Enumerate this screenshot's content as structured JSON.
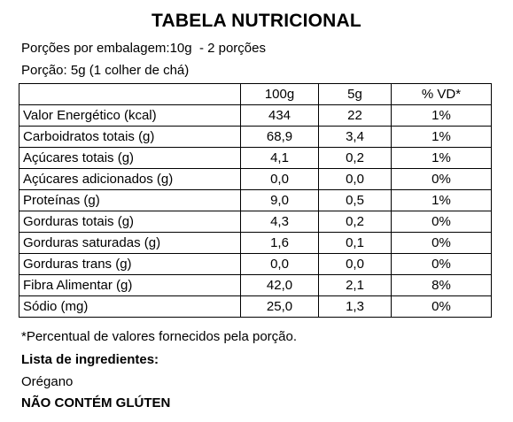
{
  "title": "TABELA NUTRICIONAL",
  "servings_per_package": "Porções por embalagem:10g  - 2 porções",
  "serving_size": "Porção: 5g (1 colher de chá)",
  "table": {
    "headers": [
      "",
      "100g",
      "5g",
      "% VD*"
    ],
    "rows": [
      {
        "name": "Valor Energético (kcal)",
        "per100g": "434",
        "per5g": "22",
        "vd": "1%"
      },
      {
        "name": "Carboidratos totais (g)",
        "per100g": "68,9",
        "per5g": "3,4",
        "vd": "1%"
      },
      {
        "name": "Açúcares totais (g)",
        "per100g": "4,1",
        "per5g": "0,2",
        "vd": "1%"
      },
      {
        "name": "Açúcares adicionados (g)",
        "per100g": "0,0",
        "per5g": "0,0",
        "vd": "0%"
      },
      {
        "name": "Proteínas (g)",
        "per100g": "9,0",
        "per5g": "0,5",
        "vd": "1%"
      },
      {
        "name": "Gorduras totais (g)",
        "per100g": "4,3",
        "per5g": "0,2",
        "vd": "0%"
      },
      {
        "name": "Gorduras saturadas (g)",
        "per100g": "1,6",
        "per5g": "0,1",
        "vd": "0%"
      },
      {
        "name": "Gorduras trans (g)",
        "per100g": "0,0",
        "per5g": "0,0",
        "vd": "0%"
      },
      {
        "name": "Fibra Alimentar (g)",
        "per100g": "42,0",
        "per5g": "2,1",
        "vd": "8%"
      },
      {
        "name": "Sódio (mg)",
        "per100g": "25,0",
        "per5g": "1,3",
        "vd": "0%"
      }
    ]
  },
  "footnote": "*Percentual de valores fornecidos pela porção.",
  "ingredients_title": "Lista de ingredientes:",
  "ingredients": "Orégano",
  "gluten_notice": "NÃO CONTÉM GLÚTEN"
}
